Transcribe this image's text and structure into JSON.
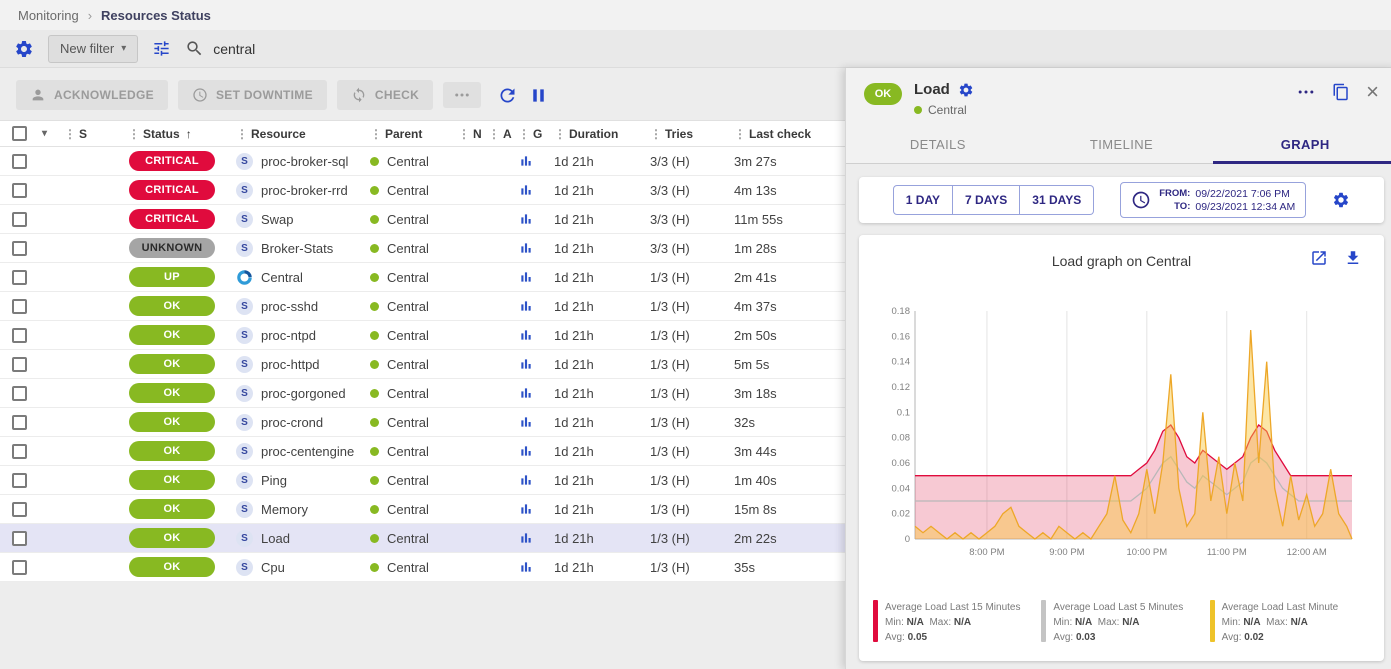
{
  "colors": {
    "accent_blue": "#2646c9",
    "navy": "#2e2782",
    "critical_red": "#e00b3d",
    "unknown_gray": "#a5a5a5",
    "ok_green": "#88b922",
    "row_highlight": "#e4e4f5"
  },
  "breadcrumb": {
    "items": [
      "Monitoring",
      "Resources Status"
    ]
  },
  "filter_bar": {
    "new_filter_label": "New filter",
    "search_value": "central"
  },
  "toolbar": {
    "acknowledge_label": "ACKNOWLEDGE",
    "set_downtime_label": "SET DOWNTIME",
    "check_label": "CHECK"
  },
  "table": {
    "service_icon_letter": "S",
    "headers": [
      "S",
      "Status",
      "Resource",
      "Parent",
      "N",
      "A",
      "G",
      "Duration",
      "Tries",
      "Last check"
    ],
    "rows": [
      {
        "status": "CRITICAL",
        "status_type": "critical",
        "icon": "service",
        "resource": "proc-broker-sql",
        "parent": "Central",
        "duration": "1d 21h",
        "tries": "3/3 (H)",
        "last_check": "3m 27s",
        "highlighted": false
      },
      {
        "status": "CRITICAL",
        "status_type": "critical",
        "icon": "service",
        "resource": "proc-broker-rrd",
        "parent": "Central",
        "duration": "1d 21h",
        "tries": "3/3 (H)",
        "last_check": "4m 13s",
        "highlighted": false
      },
      {
        "status": "CRITICAL",
        "status_type": "critical",
        "icon": "service",
        "resource": "Swap",
        "parent": "Central",
        "duration": "1d 21h",
        "tries": "3/3 (H)",
        "last_check": "11m 55s",
        "highlighted": false
      },
      {
        "status": "UNKNOWN",
        "status_type": "unknown",
        "icon": "service",
        "resource": "Broker-Stats",
        "parent": "Central",
        "duration": "1d 21h",
        "tries": "3/3 (H)",
        "last_check": "1m 28s",
        "highlighted": false
      },
      {
        "status": "UP",
        "status_type": "up",
        "icon": "host",
        "resource": "Central",
        "parent": "Central",
        "duration": "1d 21h",
        "tries": "1/3 (H)",
        "last_check": "2m 41s",
        "highlighted": false
      },
      {
        "status": "OK",
        "status_type": "ok",
        "icon": "service",
        "resource": "proc-sshd",
        "parent": "Central",
        "duration": "1d 21h",
        "tries": "1/3 (H)",
        "last_check": "4m 37s",
        "highlighted": false
      },
      {
        "status": "OK",
        "status_type": "ok",
        "icon": "service",
        "resource": "proc-ntpd",
        "parent": "Central",
        "duration": "1d 21h",
        "tries": "1/3 (H)",
        "last_check": "2m 50s",
        "highlighted": false
      },
      {
        "status": "OK",
        "status_type": "ok",
        "icon": "service",
        "resource": "proc-httpd",
        "parent": "Central",
        "duration": "1d 21h",
        "tries": "1/3 (H)",
        "last_check": "5m 5s",
        "highlighted": false
      },
      {
        "status": "OK",
        "status_type": "ok",
        "icon": "service",
        "resource": "proc-gorgoned",
        "parent": "Central",
        "duration": "1d 21h",
        "tries": "1/3 (H)",
        "last_check": "3m 18s",
        "highlighted": false
      },
      {
        "status": "OK",
        "status_type": "ok",
        "icon": "service",
        "resource": "proc-crond",
        "parent": "Central",
        "duration": "1d 21h",
        "tries": "1/3 (H)",
        "last_check": "32s",
        "highlighted": false
      },
      {
        "status": "OK",
        "status_type": "ok",
        "icon": "service",
        "resource": "proc-centengine",
        "parent": "Central",
        "duration": "1d 21h",
        "tries": "1/3 (H)",
        "last_check": "3m 44s",
        "highlighted": false
      },
      {
        "status": "OK",
        "status_type": "ok",
        "icon": "service",
        "resource": "Ping",
        "parent": "Central",
        "duration": "1d 21h",
        "tries": "1/3 (H)",
        "last_check": "1m 40s",
        "highlighted": false
      },
      {
        "status": "OK",
        "status_type": "ok",
        "icon": "service",
        "resource": "Memory",
        "parent": "Central",
        "duration": "1d 21h",
        "tries": "1/3 (H)",
        "last_check": "15m 8s",
        "highlighted": false
      },
      {
        "status": "OK",
        "status_type": "ok",
        "icon": "service",
        "resource": "Load",
        "parent": "Central",
        "duration": "1d 21h",
        "tries": "1/3 (H)",
        "last_check": "2m 22s",
        "highlighted": true
      },
      {
        "status": "OK",
        "status_type": "ok",
        "icon": "service",
        "resource": "Cpu",
        "parent": "Central",
        "duration": "1d 21h",
        "tries": "1/3 (H)",
        "last_check": "35s",
        "highlighted": false
      }
    ]
  },
  "panel": {
    "status_chip": "OK",
    "title": "Load",
    "host": "Central",
    "tabs": [
      "DETAILS",
      "TIMELINE",
      "GRAPH"
    ],
    "active_tab": "GRAPH",
    "periods": [
      "1 DAY",
      "7 DAYS",
      "31 DAYS"
    ],
    "time": {
      "from_label": "FROM:",
      "from_value": "09/22/2021 7:06 PM",
      "to_label": "TO:",
      "to_value": "09/23/2021 12:34 AM"
    },
    "graph_title": "Load graph on Central",
    "legend_labels": {
      "min": "Min:",
      "max": "Max:",
      "avg": "Avg:"
    }
  },
  "chart_data": {
    "type": "area",
    "title": "Load graph on Central",
    "ylim": [
      0,
      0.18
    ],
    "yticks": [
      {
        "v": 0,
        "label": "0"
      },
      {
        "v": 0.02,
        "label": "0.02"
      },
      {
        "v": 0.04,
        "label": "0.04"
      },
      {
        "v": 0.06,
        "label": "0.06"
      },
      {
        "v": 0.08,
        "label": "0.08"
      },
      {
        "v": 0.1,
        "label": "0.1"
      },
      {
        "v": 0.12,
        "label": "0.12"
      },
      {
        "v": 0.14,
        "label": "0.14"
      },
      {
        "v": 0.16,
        "label": "0.16"
      },
      {
        "v": 0.18,
        "label": "0.18"
      }
    ],
    "xticks": [
      {
        "min": 54,
        "label": "8:00 PM"
      },
      {
        "min": 114,
        "label": "9:00 PM"
      },
      {
        "min": 174,
        "label": "10:00 PM"
      },
      {
        "min": 234,
        "label": "11:00 PM"
      },
      {
        "min": 294,
        "label": "12:00 AM"
      }
    ],
    "x": [
      0,
      6,
      12,
      18,
      24,
      30,
      36,
      42,
      48,
      54,
      60,
      66,
      72,
      78,
      84,
      90,
      96,
      102,
      108,
      114,
      120,
      126,
      132,
      138,
      144,
      150,
      156,
      162,
      168,
      174,
      180,
      186,
      192,
      198,
      204,
      210,
      216,
      222,
      228,
      234,
      240,
      246,
      252,
      258,
      264,
      270,
      276,
      282,
      288,
      294,
      300,
      306,
      312,
      318,
      324,
      328
    ],
    "series": [
      {
        "name": "Average Load Last 15 Minutes",
        "stroke": "#e00b3d",
        "fill": "rgba(224,40,80,0.25)",
        "legend": "#e00b3d",
        "min": "N/A",
        "max": "N/A",
        "avg": "0.05",
        "values": [
          0.05,
          0.05,
          0.05,
          0.05,
          0.05,
          0.05,
          0.05,
          0.05,
          0.05,
          0.05,
          0.05,
          0.05,
          0.05,
          0.05,
          0.05,
          0.05,
          0.05,
          0.05,
          0.05,
          0.05,
          0.05,
          0.05,
          0.05,
          0.05,
          0.05,
          0.05,
          0.05,
          0.05,
          0.055,
          0.06,
          0.07,
          0.085,
          0.09,
          0.08,
          0.065,
          0.06,
          0.07,
          0.065,
          0.06,
          0.055,
          0.06,
          0.065,
          0.08,
          0.09,
          0.085,
          0.07,
          0.06,
          0.05,
          0.05,
          0.05,
          0.05,
          0.05,
          0.05,
          0.05,
          0.05,
          0.05
        ]
      },
      {
        "name": "Average Load Last 5 Minutes",
        "stroke": "#b8b8b8",
        "fill": "none",
        "legend": "#c4c4c4",
        "min": "N/A",
        "max": "N/A",
        "avg": "0.03",
        "values": [
          0.03,
          0.03,
          0.03,
          0.03,
          0.03,
          0.03,
          0.03,
          0.03,
          0.03,
          0.03,
          0.03,
          0.03,
          0.03,
          0.03,
          0.03,
          0.03,
          0.03,
          0.03,
          0.03,
          0.03,
          0.03,
          0.03,
          0.03,
          0.03,
          0.03,
          0.03,
          0.03,
          0.03,
          0.035,
          0.04,
          0.05,
          0.06,
          0.065,
          0.055,
          0.045,
          0.04,
          0.05,
          0.045,
          0.04,
          0.035,
          0.04,
          0.045,
          0.06,
          0.065,
          0.06,
          0.05,
          0.04,
          0.035,
          0.03,
          0.03,
          0.03,
          0.03,
          0.03,
          0.03,
          0.03,
          0.03
        ]
      },
      {
        "name": "Average Load Last Minute",
        "stroke": "#eda728",
        "fill": "rgba(248,200,60,0.45)",
        "legend": "#eec32a",
        "min": "N/A",
        "max": "N/A",
        "avg": "0.02",
        "values": [
          0.01,
          0.005,
          0.01,
          0.005,
          0,
          0.005,
          0,
          0.005,
          0,
          0.005,
          0.01,
          0.02,
          0.025,
          0.01,
          0.005,
          0,
          0.005,
          0,
          0.01,
          0.005,
          0,
          0.005,
          0,
          0.01,
          0.02,
          0.05,
          0.015,
          0.005,
          0.02,
          0.055,
          0.02,
          0.06,
          0.13,
          0.04,
          0.01,
          0.02,
          0.1,
          0.03,
          0.065,
          0.02,
          0.06,
          0.03,
          0.165,
          0.06,
          0.14,
          0.04,
          0.01,
          0.05,
          0.015,
          0.035,
          0.01,
          0.02,
          0.055,
          0.02,
          0.01,
          0
        ]
      }
    ]
  }
}
